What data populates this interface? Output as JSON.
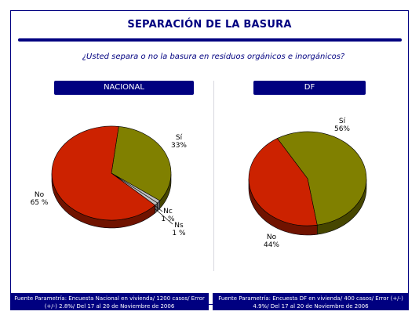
{
  "title": "SEPARACIÓN DE LA BASURA",
  "question": "¿Usted separa o no la basura en residuos orgánicos e inorgánicos?",
  "colors": {
    "navy": "#000080",
    "si": "#808000",
    "no": "#cc2200",
    "small": "#c0c0c0"
  },
  "chart_data": [
    {
      "type": "pie",
      "title": "NACIONAL",
      "slices": [
        {
          "label": "Sí",
          "value": 33,
          "display": "33%"
        },
        {
          "label": "Nc",
          "value": 1,
          "display": "1 %"
        },
        {
          "label": "Ns",
          "value": 1,
          "display": "1 %"
        },
        {
          "label": "No",
          "value": 65,
          "display": "65 %"
        }
      ],
      "footnote": "Fuente Parametría: Encuesta Nacional en vivienda/ 1200 casos/ Error (+/-) 2.8%/ Del 17 al 20 de Noviembre de 2006"
    },
    {
      "type": "pie",
      "title": "DF",
      "slices": [
        {
          "label": "Sí",
          "value": 56,
          "display": "56%"
        },
        {
          "label": "No",
          "value": 44,
          "display": "44%"
        }
      ],
      "footnote": "Fuente Parametría: Encuesta DF en vivienda/ 400 casos/ Error (+/-) 4.9%/ Del 17 al 20 de Noviembre de 2006"
    }
  ]
}
